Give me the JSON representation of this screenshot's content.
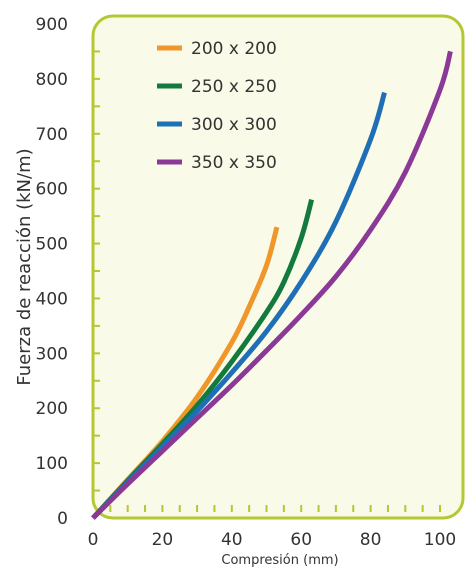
{
  "chart_data": {
    "type": "line",
    "xlabel": "Compresión (mm)",
    "ylabel": "Fuerza de reacción (kN/m)",
    "xlim": [
      0,
      105
    ],
    "ylim": [
      0,
      900
    ],
    "xticks": [
      0,
      20,
      40,
      60,
      80,
      100
    ],
    "yticks": [
      0,
      100,
      200,
      300,
      400,
      500,
      600,
      700,
      800,
      900
    ],
    "grid": false,
    "legend_position": "top-left",
    "plot_background": "#fafae8",
    "frame_color": "#b5c832",
    "series": [
      {
        "name": "200 x 200",
        "color": "#f0962a",
        "x": [
          0,
          10,
          20,
          30,
          40,
          45,
          50,
          53
        ],
        "y": [
          0,
          70,
          140,
          220,
          320,
          385,
          460,
          530
        ]
      },
      {
        "name": "250 x 250",
        "color": "#127a3c",
        "x": [
          0,
          10,
          20,
          30,
          40,
          50,
          55,
          60,
          63
        ],
        "y": [
          0,
          68,
          135,
          205,
          285,
          375,
          430,
          510,
          580
        ]
      },
      {
        "name": "300 x 300",
        "color": "#1e6fb5",
        "x": [
          0,
          10,
          20,
          30,
          40,
          50,
          60,
          70,
          80,
          84
        ],
        "y": [
          0,
          65,
          130,
          195,
          265,
          340,
          430,
          540,
          690,
          775
        ]
      },
      {
        "name": "350 x 350",
        "color": "#8a3a96",
        "x": [
          0,
          10,
          20,
          30,
          40,
          50,
          60,
          70,
          80,
          90,
          100,
          103
        ],
        "y": [
          0,
          62,
          122,
          182,
          242,
          305,
          370,
          440,
          525,
          630,
          780,
          850
        ]
      }
    ]
  }
}
